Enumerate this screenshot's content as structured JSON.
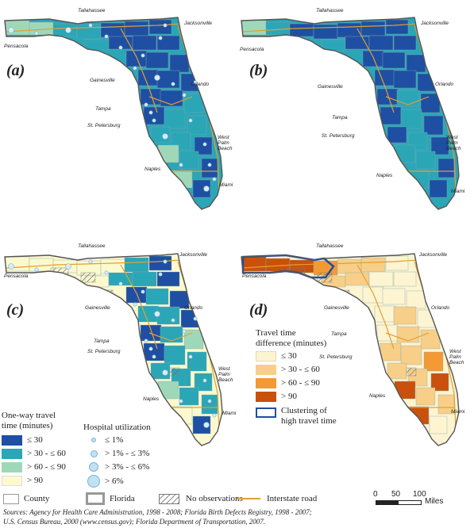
{
  "panels": [
    {
      "label": "(a)",
      "variant": "travel",
      "dots": true
    },
    {
      "label": "(b)",
      "variant": "travel2",
      "dots": false
    },
    {
      "label": "(c)",
      "variant": "travel3",
      "dots": true
    },
    {
      "label": "(d)",
      "variant": "diff",
      "dots": false
    }
  ],
  "cities": {
    "tallahassee": "Tallahassee",
    "jacksonville": "Jacksonville",
    "pensacola": "Pensacola",
    "gainesville": "Gainesville",
    "orlando": "Orlando",
    "tampa": "Tampa",
    "st_petersburg": "St. Petersburg",
    "west_palm_beach": "West Palm Beach",
    "naples": "Naples",
    "miami": "Miami"
  },
  "travel_legend": {
    "title_line1": "One-way travel",
    "title_line2": "time (minutes)",
    "items": [
      {
        "label": "≤ 30",
        "color": "#1f4fa3"
      },
      {
        "label": "> 30 - ≤ 60",
        "color": "#2aa6b7"
      },
      {
        "label": "> 60 - ≤ 90",
        "color": "#9fd8b9"
      },
      {
        "label": "> 90",
        "color": "#fcf9cf"
      }
    ]
  },
  "utilization_legend": {
    "title": "Hospital utilization",
    "items": [
      {
        "label": "≤ 1%",
        "size": 6
      },
      {
        "label": "> 1% - ≤ 3%",
        "size": 9
      },
      {
        "label": "> 3% - ≤ 6%",
        "size": 12
      },
      {
        "label": "> 6%",
        "size": 16
      }
    ]
  },
  "diff_legend": {
    "title_line1": "Travel time",
    "title_line2": "difference (minutes)",
    "items": [
      {
        "label": "≤ 30",
        "color": "#fdf4d2"
      },
      {
        "label": "> 30 - ≤ 60",
        "color": "#f8cf88"
      },
      {
        "label": "> 60 - ≤ 90",
        "color": "#f39a34"
      },
      {
        "label": "> 90",
        "color": "#c9510c"
      }
    ],
    "cluster_label_line1": "Clustering of",
    "cluster_label_line2": "high travel time",
    "cluster_color": "#1f4fa3"
  },
  "bottom_legend": {
    "county": "County",
    "florida": "Florida",
    "no_obs": "No observations",
    "interstate": "Interstate road",
    "interstate_color": "#e0a030"
  },
  "scale": {
    "t0": "0",
    "t1": "50",
    "t2": "100",
    "unit": "Miles"
  },
  "sources": {
    "line1": "Sources: Agency for Health Care Administration, 1998 - 2008; Florida Birth Defects Registry, 1998 - 2007;",
    "line2": "U.S. Census Bureau, 2000 (www.census.gov); Florida Department of Transportation, 2007."
  }
}
